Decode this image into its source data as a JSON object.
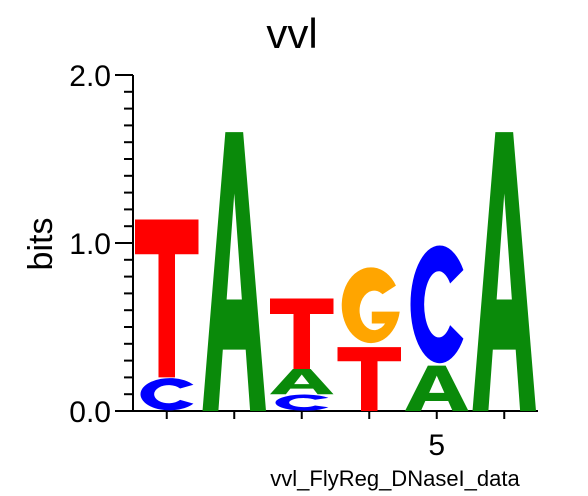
{
  "chart_data": {
    "type": "sequence-logo",
    "title": "vvl",
    "ylabel": "bits",
    "xlabel": "vvl_FlyReg_DNaseI_data",
    "ylim": [
      0,
      2.0
    ],
    "y_ticks": [
      "0.0",
      "1.0",
      "2.0"
    ],
    "x_tick_labels": [
      {
        "position": 5,
        "label": "5"
      }
    ],
    "colors": {
      "A": "#0a8a0a",
      "C": "#0000ff",
      "G": "#ffa500",
      "T": "#ff0000"
    },
    "positions": [
      {
        "position": 1,
        "letters": [
          {
            "letter": "C",
            "bits": 0.2
          },
          {
            "letter": "T",
            "bits": 0.94
          }
        ]
      },
      {
        "position": 2,
        "letters": [
          {
            "letter": "A",
            "bits": 1.66
          }
        ]
      },
      {
        "position": 3,
        "letters": [
          {
            "letter": "C",
            "bits": 0.1
          },
          {
            "letter": "A",
            "bits": 0.15
          },
          {
            "letter": "T",
            "bits": 0.42
          }
        ]
      },
      {
        "position": 4,
        "letters": [
          {
            "letter": "T",
            "bits": 0.38
          },
          {
            "letter": "G",
            "bits": 0.47
          }
        ]
      },
      {
        "position": 5,
        "letters": [
          {
            "letter": "A",
            "bits": 0.27
          },
          {
            "letter": "C",
            "bits": 0.73
          }
        ]
      },
      {
        "position": 6,
        "letters": [
          {
            "letter": "A",
            "bits": 1.66
          }
        ]
      }
    ]
  }
}
